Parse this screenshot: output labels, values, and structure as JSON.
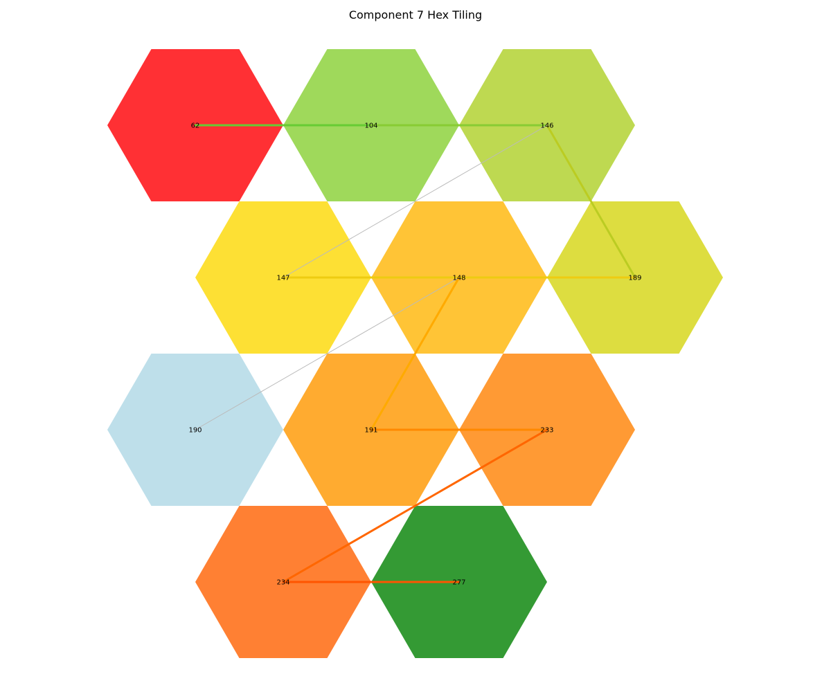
{
  "title": "Component 7 Hex Tiling",
  "cells": [
    {
      "id": "62",
      "label": "62",
      "color": "#ff3034"
    },
    {
      "id": "104",
      "label": "104",
      "color": "#9fd95b"
    },
    {
      "id": "146",
      "label": "146",
      "color": "#bed951"
    },
    {
      "id": "147",
      "label": "147",
      "color": "#fde034"
    },
    {
      "id": "148",
      "label": "148",
      "color": "#ffc436"
    },
    {
      "id": "189",
      "label": "189",
      "color": "#dddd40"
    },
    {
      "id": "190",
      "label": "190",
      "color": "#bedfea"
    },
    {
      "id": "191",
      "label": "191",
      "color": "#ffab30"
    },
    {
      "id": "233",
      "label": "233",
      "color": "#ff9a34"
    },
    {
      "id": "234",
      "label": "234",
      "color": "#ff8033"
    },
    {
      "id": "277",
      "label": "277",
      "color": "#349a34"
    }
  ],
  "edges": [
    {
      "from": "62",
      "to": "104",
      "color": "#66cc33",
      "weight": "heavy"
    },
    {
      "from": "104",
      "to": "146",
      "color": "#88cc33",
      "weight": "heavy"
    },
    {
      "from": "146",
      "to": "189",
      "color": "#bbcc22",
      "weight": "heavy"
    },
    {
      "from": "146",
      "to": "147",
      "color": "#bbbbbb",
      "weight": "light"
    },
    {
      "from": "147",
      "to": "148",
      "color": "#eecc11",
      "weight": "heavy"
    },
    {
      "from": "148",
      "to": "189",
      "color": "#eecc11",
      "weight": "heavy"
    },
    {
      "from": "148",
      "to": "190",
      "color": "#bbbbbb",
      "weight": "light"
    },
    {
      "from": "148",
      "to": "191",
      "color": "#ffaa00",
      "weight": "heavy"
    },
    {
      "from": "191",
      "to": "233",
      "color": "#ff8800",
      "weight": "heavy"
    },
    {
      "from": "233",
      "to": "234",
      "color": "#ff6600",
      "weight": "heavy"
    },
    {
      "from": "234",
      "to": "277",
      "color": "#ff5500",
      "weight": "heavy"
    }
  ]
}
